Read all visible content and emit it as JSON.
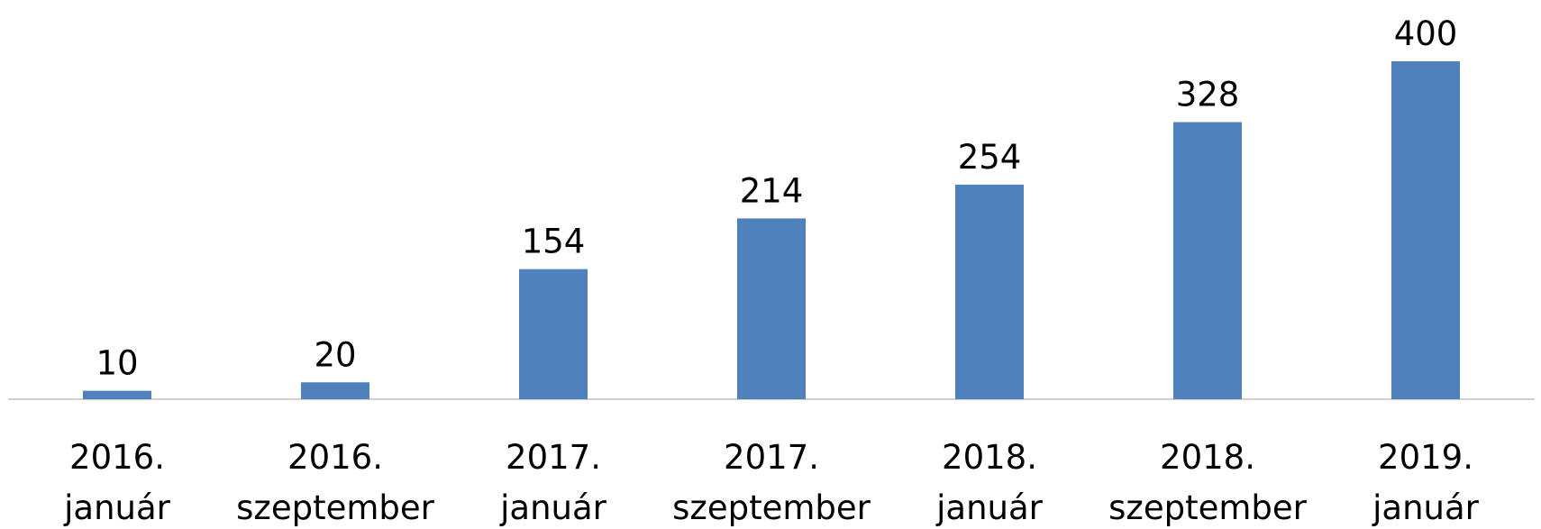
{
  "chart_data": {
    "type": "bar",
    "categories": [
      "2016. január",
      "2016. szeptember",
      "2017. január",
      "2017. szeptember",
      "2018. január",
      "2018. szeptember",
      "2019. január"
    ],
    "values": [
      10,
      20,
      154,
      214,
      254,
      328,
      400
    ],
    "color": "#4f81bd",
    "ylim": [
      0,
      400
    ]
  }
}
